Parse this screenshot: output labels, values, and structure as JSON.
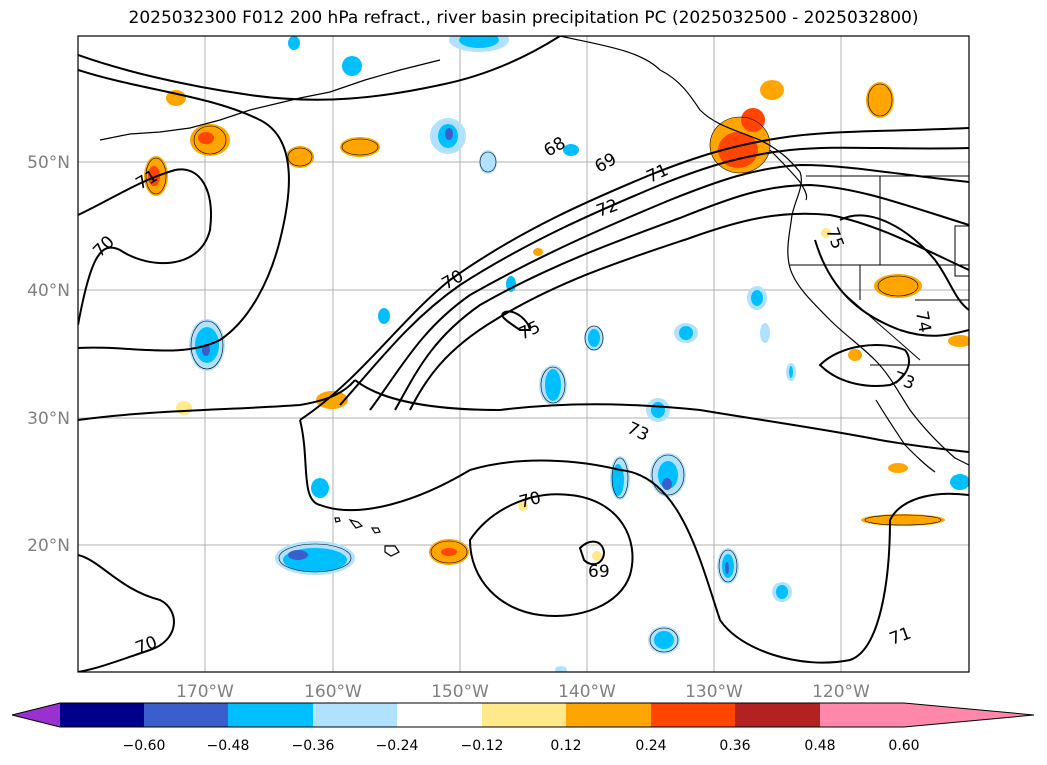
{
  "title": "2025032300 F012 200 hPa refract., river basin precipitation PC (2025032500 - 2025032800)",
  "map": {
    "lon_ticks": [
      "170°W",
      "160°W",
      "150°W",
      "140°W",
      "130°W",
      "120°W"
    ],
    "lat_ticks": [
      "50°N",
      "40°N",
      "30°N",
      "20°N"
    ],
    "contour_labels": [
      "68",
      "69",
      "71",
      "72",
      "70",
      "71",
      "70",
      "75",
      "73",
      "70",
      "69",
      "70",
      "71",
      "75",
      "74",
      "73"
    ]
  },
  "colorbar": {
    "ticks": [
      "−0.60",
      "−0.48",
      "−0.36",
      "−0.24",
      "−0.12",
      "0.12",
      "0.24",
      "0.36",
      "0.48",
      "0.60"
    ],
    "colors": [
      "#9b30d0",
      "#00008b",
      "#3a5fcd",
      "#00bfff",
      "#b0e2ff",
      "#ffffff",
      "#ffe98a",
      "#ffa500",
      "#ff4500",
      "#b22222",
      "#ff88aa"
    ]
  }
}
